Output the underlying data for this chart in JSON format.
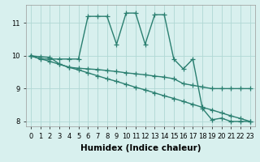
{
  "xlabel": "Humidex (Indice chaleur)",
  "x_values": [
    0,
    1,
    2,
    3,
    4,
    5,
    6,
    7,
    8,
    9,
    10,
    11,
    12,
    13,
    14,
    15,
    16,
    17,
    18,
    19,
    20,
    21,
    22,
    23
  ],
  "line1_y": [
    10.0,
    9.9,
    9.9,
    9.9,
    9.9,
    9.9,
    11.2,
    11.2,
    11.2,
    10.35,
    11.3,
    11.3,
    10.35,
    11.25,
    11.25,
    9.9,
    9.6,
    9.9,
    8.4,
    8.05,
    8.1,
    8.0,
    8.0,
    8.0
  ],
  "line2_y": [
    10.0,
    9.97,
    9.95,
    9.75,
    9.65,
    9.62,
    9.6,
    9.58,
    9.55,
    9.52,
    9.48,
    9.45,
    9.42,
    9.38,
    9.35,
    9.3,
    9.15,
    9.1,
    9.05,
    9.0,
    9.0,
    9.0,
    9.0,
    9.0
  ],
  "line3_y": [
    10.0,
    9.91,
    9.83,
    9.74,
    9.65,
    9.57,
    9.48,
    9.39,
    9.3,
    9.22,
    9.13,
    9.04,
    8.96,
    8.87,
    8.78,
    8.7,
    8.61,
    8.52,
    8.43,
    8.35,
    8.26,
    8.17,
    8.09,
    8.0
  ],
  "line_color": "#2a7f70",
  "bg_color": "#d8f0ee",
  "grid_color": "#b0d8d4",
  "ylim_min": 7.85,
  "ylim_max": 11.55,
  "yticks": [
    8,
    9,
    10,
    11
  ],
  "xticks": [
    0,
    1,
    2,
    3,
    4,
    5,
    6,
    7,
    8,
    9,
    10,
    11,
    12,
    13,
    14,
    15,
    16,
    17,
    18,
    19,
    20,
    21,
    22,
    23
  ],
  "marker": "+",
  "markersize": 4,
  "linewidth": 1.0,
  "tick_fontsize": 6,
  "xlabel_fontsize": 7.5
}
